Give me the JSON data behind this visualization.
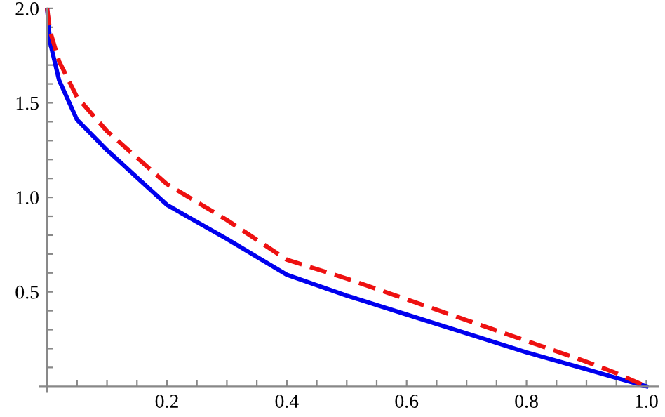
{
  "chart_data": {
    "type": "line",
    "xlim": [
      -0.012,
      1.02
    ],
    "ylim": [
      -0.03,
      2.0
    ],
    "xticks": [
      {
        "value": 0,
        "label": null
      },
      {
        "value": 0.05,
        "label": null
      },
      {
        "value": 0.1,
        "label": null
      },
      {
        "value": 0.15,
        "label": null
      },
      {
        "value": 0.2,
        "label": "0.2"
      },
      {
        "value": 0.25,
        "label": null
      },
      {
        "value": 0.3,
        "label": null
      },
      {
        "value": 0.35,
        "label": null
      },
      {
        "value": 0.4,
        "label": "0.4"
      },
      {
        "value": 0.45,
        "label": null
      },
      {
        "value": 0.5,
        "label": null
      },
      {
        "value": 0.55,
        "label": null
      },
      {
        "value": 0.6,
        "label": "0.6"
      },
      {
        "value": 0.65,
        "label": null
      },
      {
        "value": 0.7,
        "label": null
      },
      {
        "value": 0.75,
        "label": null
      },
      {
        "value": 0.8,
        "label": "0.8"
      },
      {
        "value": 0.85,
        "label": null
      },
      {
        "value": 0.9,
        "label": null
      },
      {
        "value": 0.95,
        "label": null
      },
      {
        "value": 1.0,
        "label": "1.0"
      }
    ],
    "yticks": [
      {
        "value": 0.1,
        "label": null
      },
      {
        "value": 0.2,
        "label": null
      },
      {
        "value": 0.3,
        "label": null
      },
      {
        "value": 0.4,
        "label": null
      },
      {
        "value": 0.5,
        "label": "0.5"
      },
      {
        "value": 0.6,
        "label": null
      },
      {
        "value": 0.7,
        "label": null
      },
      {
        "value": 0.8,
        "label": null
      },
      {
        "value": 0.9,
        "label": null
      },
      {
        "value": 1.0,
        "label": "1.0"
      },
      {
        "value": 1.1,
        "label": null
      },
      {
        "value": 1.2,
        "label": null
      },
      {
        "value": 1.3,
        "label": null
      },
      {
        "value": 1.4,
        "label": null
      },
      {
        "value": 1.5,
        "label": "1.5"
      },
      {
        "value": 1.6,
        "label": null
      },
      {
        "value": 1.7,
        "label": null
      },
      {
        "value": 1.8,
        "label": null
      },
      {
        "value": 1.9,
        "label": null
      },
      {
        "value": 2.0,
        "label": "2.0"
      }
    ],
    "grid": false,
    "marker": "none",
    "x": [
      0,
      0.005,
      0.02,
      0.05,
      0.1,
      0.2,
      0.3,
      0.4,
      0.5,
      0.6,
      0.7,
      0.8,
      0.9,
      0.95,
      1.0
    ],
    "series": [
      {
        "color": "#0000ee",
        "line_style": "solid",
        "values": [
          2.0,
          1.82,
          1.62,
          1.41,
          1.25,
          0.96,
          0.78,
          0.59,
          0.48,
          0.38,
          0.28,
          0.18,
          0.09,
          0.044,
          0
        ]
      },
      {
        "color": "#ee1111",
        "line_style": "dashed",
        "values": [
          2.0,
          1.88,
          1.72,
          1.53,
          1.35,
          1.07,
          0.88,
          0.67,
          0.57,
          0.46,
          0.35,
          0.24,
          0.13,
          0.069,
          0
        ]
      }
    ]
  }
}
